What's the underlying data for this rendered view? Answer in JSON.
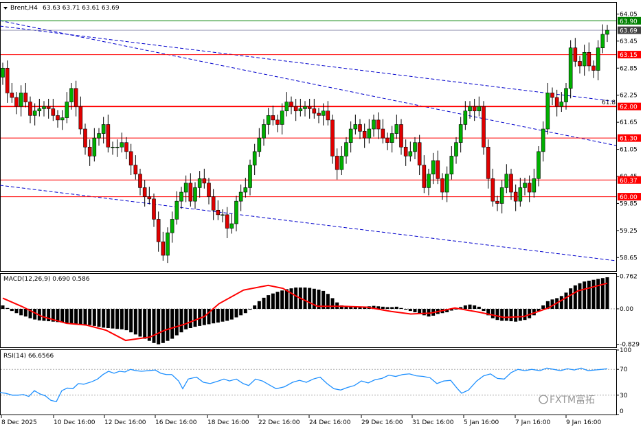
{
  "header": {
    "symbol": "Brent,H4",
    "ohlc": "63.63 63.71 63.61 63.69"
  },
  "indicators": {
    "macd_label": "MACD(12,26,9) 0.690 0.586",
    "macd_axis": [
      "0.762",
      "0.00",
      "-0.829"
    ],
    "rsi_label": "RSI(14) 66.6566",
    "rsi_axis": [
      "100",
      "70",
      "30",
      "0"
    ]
  },
  "watermark": "FXTM富拓",
  "colors": {
    "bull": "#00b000",
    "bear": "#e00000",
    "support": "#ff0000",
    "top_line": "#008000",
    "trend": "#0000cc",
    "macd_signal": "#ff0000",
    "rsi": "#1e90ff",
    "price_tag": "#444444"
  },
  "chart_data": {
    "type": "candlestick",
    "price_axis": [
      "64.05",
      "63.45",
      "62.85",
      "62.25",
      "61.65",
      "61.05",
      "60.45",
      "59.85",
      "59.25",
      "58.65"
    ],
    "ylim": [
      58.35,
      64.3
    ],
    "x_labels": [
      "8 Dec 2025",
      "10 Dec 16:00",
      "12 Dec 16:00",
      "16 Dec 16:00",
      "18 Dec 16:00",
      "22 Dec 16:00",
      "24 Dec 16:00",
      "29 Dec 16:00",
      "31 Dec 16:00",
      "5 Jan 16:00",
      "7 Jan 16:00",
      "9 Jan 16:00"
    ],
    "levels": [
      {
        "value": 63.15,
        "label": "63.15"
      },
      {
        "value": 62.0,
        "label": "62.00"
      },
      {
        "value": 61.3,
        "label": "61.30"
      },
      {
        "value": 60.37,
        "label": "60.37"
      },
      {
        "value": 60.0,
        "label": "60.00"
      }
    ],
    "top_level": {
      "value": 63.9,
      "label": "63.90"
    },
    "current": {
      "value": 63.69,
      "label": "63.69"
    },
    "fib_label": "61.8",
    "closes": [
      62.85,
      62.3,
      62.2,
      62.0,
      62.3,
      62.1,
      61.8,
      61.9,
      61.95,
      62.0,
      61.95,
      61.8,
      61.7,
      61.75,
      62.1,
      62.4,
      62.0,
      61.5,
      61.1,
      60.9,
      61.3,
      61.4,
      61.6,
      61.1,
      61.1,
      61.1,
      61.2,
      61.0,
      60.7,
      60.5,
      60.2,
      60.0,
      59.95,
      59.5,
      59.0,
      58.7,
      59.2,
      59.5,
      59.9,
      60.1,
      60.3,
      59.9,
      60.2,
      60.4,
      60.3,
      60.0,
      59.7,
      59.6,
      59.6,
      59.3,
      59.4,
      59.9,
      60.1,
      60.2,
      60.7,
      61.0,
      61.3,
      61.6,
      61.8,
      61.7,
      61.6,
      61.9,
      62.1,
      62.0,
      61.9,
      61.95,
      62.0,
      61.95,
      61.85,
      61.8,
      61.9,
      61.7,
      60.9,
      60.6,
      60.9,
      61.2,
      61.5,
      61.6,
      61.45,
      61.3,
      61.5,
      61.7,
      61.5,
      61.3,
      61.2,
      61.4,
      61.6,
      61.1,
      60.9,
      61.0,
      61.2,
      60.7,
      60.2,
      60.5,
      60.8,
      60.4,
      60.1,
      60.5,
      60.9,
      61.2,
      61.6,
      61.9,
      62.0,
      61.9,
      62.0,
      61.1,
      60.4,
      59.9,
      59.85,
      60.2,
      60.5,
      60.1,
      59.9,
      60.2,
      60.3,
      60.1,
      60.4,
      61.0,
      61.5,
      62.3,
      62.2,
      62.0,
      62.1,
      62.4,
      63.3,
      63.0,
      62.9,
      63.2,
      62.9,
      62.8,
      63.3,
      63.6,
      63.69
    ],
    "macd_ylim": [
      -0.9,
      0.82
    ],
    "macd_hist": [
      0.08,
      0.02,
      -0.05,
      -0.1,
      -0.15,
      -0.18,
      -0.22,
      -0.25,
      -0.27,
      -0.28,
      -0.29,
      -0.3,
      -0.31,
      -0.32,
      -0.33,
      -0.35,
      -0.36,
      -0.36,
      -0.37,
      -0.38,
      -0.4,
      -0.42,
      -0.44,
      -0.45,
      -0.46,
      -0.47,
      -0.48,
      -0.5,
      -0.55,
      -0.6,
      -0.65,
      -0.7,
      -0.75,
      -0.8,
      -0.83,
      -0.8,
      -0.75,
      -0.7,
      -0.62,
      -0.55,
      -0.48,
      -0.45,
      -0.42,
      -0.4,
      -0.38,
      -0.36,
      -0.34,
      -0.32,
      -0.3,
      -0.28,
      -0.25,
      -0.2,
      -0.15,
      -0.1,
      -0.02,
      0.08,
      0.18,
      0.26,
      0.32,
      0.36,
      0.4,
      0.43,
      0.46,
      0.48,
      0.5,
      0.5,
      0.5,
      0.49,
      0.47,
      0.45,
      0.42,
      0.35,
      0.25,
      0.15,
      0.08,
      0.05,
      0.05,
      0.06,
      0.05,
      0.05,
      0.06,
      0.07,
      0.06,
      0.05,
      0.04,
      0.04,
      0.05,
      0.02,
      -0.02,
      -0.05,
      -0.08,
      -0.12,
      -0.15,
      -0.18,
      -0.16,
      -0.12,
      -0.1,
      -0.08,
      -0.04,
      0.0,
      0.04,
      0.08,
      0.1,
      0.08,
      0.05,
      -0.05,
      -0.15,
      -0.22,
      -0.26,
      -0.28,
      -0.28,
      -0.29,
      -0.3,
      -0.28,
      -0.26,
      -0.22,
      -0.15,
      -0.05,
      0.08,
      0.18,
      0.22,
      0.25,
      0.3,
      0.38,
      0.48,
      0.55,
      0.6,
      0.64,
      0.66,
      0.68,
      0.7,
      0.72,
      0.74
    ],
    "macd_signal_pts": [
      [
        0,
        0.25
      ],
      [
        8,
        0.05
      ],
      [
        16,
        -0.18
      ],
      [
        26,
        -0.34
      ],
      [
        34,
        -0.38
      ],
      [
        42,
        -0.5
      ],
      [
        50,
        -0.74
      ],
      [
        60,
        -0.66
      ],
      [
        66,
        -0.5
      ],
      [
        74,
        -0.36
      ],
      [
        82,
        -0.18
      ],
      [
        88,
        0.12
      ],
      [
        98,
        0.44
      ],
      [
        108,
        0.55
      ],
      [
        114,
        0.48
      ],
      [
        120,
        0.28
      ],
      [
        128,
        0.06
      ],
      [
        138,
        0.06
      ],
      [
        148,
        0.04
      ],
      [
        158,
        -0.06
      ],
      [
        166,
        -0.12
      ],
      [
        174,
        -0.1
      ],
      [
        184,
        0.02
      ],
      [
        194,
        -0.08
      ],
      [
        204,
        -0.2
      ],
      [
        212,
        -0.18
      ],
      [
        222,
        0.02
      ],
      [
        234,
        0.42
      ],
      [
        246,
        0.6
      ]
    ],
    "rsi_ylim": [
      0,
      100
    ],
    "rsi_pts": [
      [
        0,
        34
      ],
      [
        8,
        33
      ],
      [
        18,
        30
      ],
      [
        26,
        30
      ],
      [
        34,
        31
      ],
      [
        42,
        28
      ],
      [
        50,
        37
      ],
      [
        58,
        32
      ],
      [
        66,
        29
      ],
      [
        74,
        22
      ],
      [
        82,
        20
      ],
      [
        90,
        37
      ],
      [
        98,
        41
      ],
      [
        106,
        40
      ],
      [
        114,
        48
      ],
      [
        122,
        47
      ],
      [
        134,
        51
      ],
      [
        142,
        55
      ],
      [
        150,
        62
      ],
      [
        158,
        67
      ],
      [
        166,
        64
      ],
      [
        174,
        67
      ],
      [
        182,
        66
      ],
      [
        190,
        70
      ],
      [
        198,
        68
      ],
      [
        206,
        67
      ],
      [
        216,
        68
      ],
      [
        226,
        69
      ],
      [
        234,
        64
      ],
      [
        242,
        62
      ],
      [
        250,
        62
      ],
      [
        260,
        52
      ],
      [
        266,
        40
      ],
      [
        274,
        55
      ],
      [
        286,
        58
      ],
      [
        296,
        50
      ],
      [
        306,
        48
      ],
      [
        318,
        52
      ],
      [
        326,
        55
      ],
      [
        334,
        52
      ],
      [
        344,
        55
      ],
      [
        354,
        48
      ],
      [
        362,
        45
      ],
      [
        372,
        55
      ],
      [
        382,
        52
      ],
      [
        392,
        46
      ],
      [
        402,
        40
      ],
      [
        414,
        43
      ],
      [
        426,
        50
      ],
      [
        436,
        53
      ],
      [
        446,
        50
      ],
      [
        456,
        55
      ],
      [
        466,
        58
      ],
      [
        476,
        48
      ],
      [
        486,
        40
      ],
      [
        496,
        38
      ],
      [
        506,
        42
      ],
      [
        516,
        45
      ],
      [
        526,
        52
      ],
      [
        536,
        49
      ],
      [
        546,
        54
      ],
      [
        556,
        56
      ],
      [
        566,
        61
      ],
      [
        576,
        59
      ],
      [
        586,
        62
      ],
      [
        596,
        63
      ],
      [
        606,
        60
      ],
      [
        616,
        59
      ],
      [
        626,
        57
      ],
      [
        636,
        48
      ],
      [
        646,
        52
      ],
      [
        656,
        53
      ],
      [
        666,
        40
      ],
      [
        672,
        33
      ],
      [
        682,
        38
      ],
      [
        694,
        52
      ],
      [
        704,
        60
      ],
      [
        714,
        63
      ],
      [
        724,
        56
      ],
      [
        734,
        55
      ],
      [
        744,
        65
      ],
      [
        754,
        70
      ],
      [
        764,
        68
      ],
      [
        774,
        70
      ],
      [
        786,
        68
      ],
      [
        796,
        72
      ],
      [
        806,
        70
      ],
      [
        816,
        68
      ],
      [
        826,
        71
      ],
      [
        836,
        69
      ],
      [
        846,
        72
      ],
      [
        856,
        68
      ],
      [
        866,
        69
      ],
      [
        876,
        70
      ],
      [
        884,
        71
      ]
    ]
  }
}
